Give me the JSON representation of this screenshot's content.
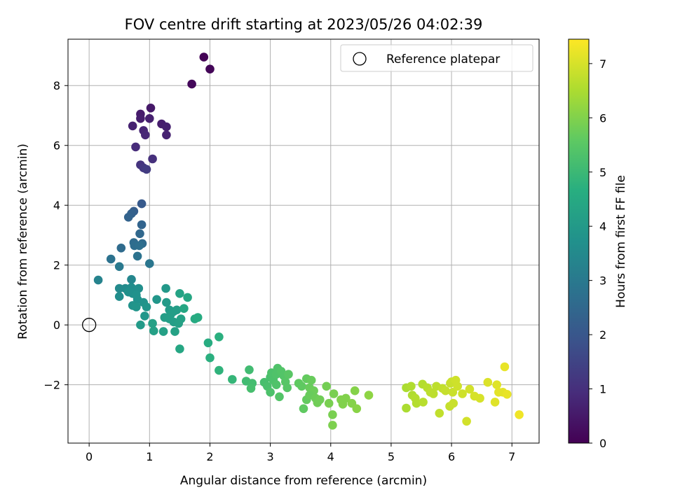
{
  "chart_data": {
    "type": "scatter",
    "title": "FOV centre drift starting at 2023/05/26 04:02:39",
    "xlabel": "Angular distance from reference (arcmin)",
    "ylabel": "Rotation from reference (arcmin)",
    "xlim": [
      -0.35,
      7.45
    ],
    "ylim": [
      -3.95,
      9.55
    ],
    "xticks": [
      0,
      1,
      2,
      3,
      4,
      5,
      6,
      7
    ],
    "yticks": [
      -2,
      0,
      2,
      4,
      6,
      8
    ],
    "grid": true,
    "legend": {
      "placement": "top-right",
      "entries": [
        "Reference platepar"
      ]
    },
    "reference_point": {
      "x": 0,
      "y": 0
    },
    "colorbar": {
      "label": "Hours from first FF file",
      "range": [
        0,
        7.45
      ],
      "ticks": [
        0,
        1,
        2,
        3,
        4,
        5,
        6,
        7
      ],
      "colormap": "viridis"
    },
    "points": [
      {
        "x": 1.9,
        "y": 8.95,
        "c": 0.05
      },
      {
        "x": 2.0,
        "y": 8.55,
        "c": 0.1
      },
      {
        "x": 1.7,
        "y": 8.05,
        "c": 0.15
      },
      {
        "x": 1.02,
        "y": 7.25,
        "c": 0.5
      },
      {
        "x": 0.85,
        "y": 7.05,
        "c": 0.55
      },
      {
        "x": 0.85,
        "y": 6.9,
        "c": 0.6
      },
      {
        "x": 1.0,
        "y": 6.9,
        "c": 0.65
      },
      {
        "x": 0.72,
        "y": 6.65,
        "c": 0.7
      },
      {
        "x": 1.2,
        "y": 6.72,
        "c": 0.6
      },
      {
        "x": 1.28,
        "y": 6.62,
        "c": 0.65
      },
      {
        "x": 0.9,
        "y": 6.5,
        "c": 0.75
      },
      {
        "x": 0.93,
        "y": 6.35,
        "c": 0.8
      },
      {
        "x": 1.28,
        "y": 6.35,
        "c": 0.7
      },
      {
        "x": 0.77,
        "y": 5.95,
        "c": 0.9
      },
      {
        "x": 1.05,
        "y": 5.55,
        "c": 1.0
      },
      {
        "x": 0.85,
        "y": 5.35,
        "c": 1.1
      },
      {
        "x": 0.9,
        "y": 5.25,
        "c": 1.2
      },
      {
        "x": 0.95,
        "y": 5.2,
        "c": 1.3
      },
      {
        "x": 0.87,
        "y": 4.05,
        "c": 2.1
      },
      {
        "x": 0.74,
        "y": 3.8,
        "c": 2.2
      },
      {
        "x": 0.7,
        "y": 3.72,
        "c": 2.3
      },
      {
        "x": 0.65,
        "y": 3.6,
        "c": 2.35
      },
      {
        "x": 0.87,
        "y": 3.35,
        "c": 2.4
      },
      {
        "x": 0.84,
        "y": 3.05,
        "c": 2.5
      },
      {
        "x": 0.74,
        "y": 2.75,
        "c": 2.6
      },
      {
        "x": 0.88,
        "y": 2.72,
        "c": 2.6
      },
      {
        "x": 0.75,
        "y": 2.65,
        "c": 2.65
      },
      {
        "x": 0.83,
        "y": 2.65,
        "c": 2.7
      },
      {
        "x": 0.53,
        "y": 2.57,
        "c": 2.6
      },
      {
        "x": 0.8,
        "y": 2.3,
        "c": 2.8
      },
      {
        "x": 0.36,
        "y": 2.2,
        "c": 2.8
      },
      {
        "x": 1.0,
        "y": 2.05,
        "c": 2.9
      },
      {
        "x": 0.5,
        "y": 1.95,
        "c": 3.0
      },
      {
        "x": 0.15,
        "y": 1.5,
        "c": 3.3
      },
      {
        "x": 0.7,
        "y": 1.52,
        "c": 3.4
      },
      {
        "x": 0.5,
        "y": 1.22,
        "c": 3.5
      },
      {
        "x": 0.6,
        "y": 1.22,
        "c": 3.55
      },
      {
        "x": 0.7,
        "y": 1.25,
        "c": 3.6
      },
      {
        "x": 0.82,
        "y": 1.22,
        "c": 3.65
      },
      {
        "x": 0.65,
        "y": 1.1,
        "c": 3.7
      },
      {
        "x": 0.72,
        "y": 1.05,
        "c": 3.7
      },
      {
        "x": 0.78,
        "y": 1.0,
        "c": 3.75
      },
      {
        "x": 0.5,
        "y": 0.95,
        "c": 3.6
      },
      {
        "x": 0.8,
        "y": 0.85,
        "c": 3.75
      },
      {
        "x": 0.9,
        "y": 0.75,
        "c": 3.8
      },
      {
        "x": 0.72,
        "y": 0.65,
        "c": 3.8
      },
      {
        "x": 0.78,
        "y": 0.6,
        "c": 3.85
      },
      {
        "x": 0.95,
        "y": 0.6,
        "c": 3.85
      },
      {
        "x": 1.12,
        "y": 0.85,
        "c": 3.9
      },
      {
        "x": 1.27,
        "y": 1.22,
        "c": 3.95
      },
      {
        "x": 1.28,
        "y": 0.75,
        "c": 4.0
      },
      {
        "x": 1.33,
        "y": 0.5,
        "c": 4.05
      },
      {
        "x": 1.4,
        "y": 0.45,
        "c": 4.05
      },
      {
        "x": 1.45,
        "y": 0.5,
        "c": 4.1
      },
      {
        "x": 1.35,
        "y": 0.35,
        "c": 4.1
      },
      {
        "x": 1.5,
        "y": 1.05,
        "c": 4.3
      },
      {
        "x": 1.63,
        "y": 0.92,
        "c": 4.4
      },
      {
        "x": 1.57,
        "y": 0.55,
        "c": 4.4
      },
      {
        "x": 1.25,
        "y": 0.25,
        "c": 4.1
      },
      {
        "x": 1.33,
        "y": 0.2,
        "c": 4.15
      },
      {
        "x": 1.4,
        "y": 0.1,
        "c": 4.15
      },
      {
        "x": 1.48,
        "y": 0.05,
        "c": 4.2
      },
      {
        "x": 1.52,
        "y": 0.2,
        "c": 4.25
      },
      {
        "x": 1.05,
        "y": 0.05,
        "c": 4.2
      },
      {
        "x": 0.85,
        "y": 0.0,
        "c": 4.0
      },
      {
        "x": 0.92,
        "y": 0.3,
        "c": 3.9
      },
      {
        "x": 1.07,
        "y": -0.2,
        "c": 4.2
      },
      {
        "x": 1.23,
        "y": -0.22,
        "c": 4.2
      },
      {
        "x": 1.42,
        "y": -0.22,
        "c": 4.25
      },
      {
        "x": 1.75,
        "y": 0.2,
        "c": 4.5
      },
      {
        "x": 1.8,
        "y": 0.25,
        "c": 4.55
      },
      {
        "x": 1.5,
        "y": -0.8,
        "c": 4.4
      },
      {
        "x": 1.97,
        "y": -0.6,
        "c": 4.6
      },
      {
        "x": 2.15,
        "y": -0.4,
        "c": 4.7
      },
      {
        "x": 2.0,
        "y": -1.1,
        "c": 4.7
      },
      {
        "x": 2.15,
        "y": -1.52,
        "c": 4.8
      },
      {
        "x": 2.37,
        "y": -1.82,
        "c": 4.9
      },
      {
        "x": 2.65,
        "y": -1.5,
        "c": 5.1
      },
      {
        "x": 2.6,
        "y": -1.88,
        "c": 5.1
      },
      {
        "x": 2.7,
        "y": -1.95,
        "c": 5.15
      },
      {
        "x": 2.68,
        "y": -2.12,
        "c": 5.2
      },
      {
        "x": 2.9,
        "y": -1.92,
        "c": 5.2
      },
      {
        "x": 2.95,
        "y": -2.05,
        "c": 5.25
      },
      {
        "x": 3.0,
        "y": -1.75,
        "c": 5.25
      },
      {
        "x": 3.02,
        "y": -1.6,
        "c": 5.3
      },
      {
        "x": 3.05,
        "y": -1.85,
        "c": 5.3
      },
      {
        "x": 3.1,
        "y": -1.65,
        "c": 5.35
      },
      {
        "x": 3.12,
        "y": -1.45,
        "c": 5.35
      },
      {
        "x": 3.18,
        "y": -1.55,
        "c": 5.4
      },
      {
        "x": 3.22,
        "y": -1.7,
        "c": 5.4
      },
      {
        "x": 3.25,
        "y": -1.9,
        "c": 5.45
      },
      {
        "x": 3.28,
        "y": -2.1,
        "c": 5.45
      },
      {
        "x": 3.3,
        "y": -1.65,
        "c": 5.5
      },
      {
        "x": 3.0,
        "y": -2.25,
        "c": 5.3
      },
      {
        "x": 3.15,
        "y": -2.4,
        "c": 5.4
      },
      {
        "x": 3.1,
        "y": -2.0,
        "c": 5.35
      },
      {
        "x": 3.47,
        "y": -1.95,
        "c": 5.6
      },
      {
        "x": 3.52,
        "y": -2.05,
        "c": 5.6
      },
      {
        "x": 3.6,
        "y": -1.8,
        "c": 5.65
      },
      {
        "x": 3.65,
        "y": -2.1,
        "c": 5.7
      },
      {
        "x": 3.68,
        "y": -1.85,
        "c": 5.7
      },
      {
        "x": 3.72,
        "y": -2.2,
        "c": 5.75
      },
      {
        "x": 3.6,
        "y": -2.5,
        "c": 5.65
      },
      {
        "x": 3.65,
        "y": -2.35,
        "c": 5.7
      },
      {
        "x": 3.75,
        "y": -2.45,
        "c": 5.75
      },
      {
        "x": 3.55,
        "y": -2.8,
        "c": 5.6
      },
      {
        "x": 3.78,
        "y": -2.6,
        "c": 5.8
      },
      {
        "x": 3.82,
        "y": -2.5,
        "c": 5.8
      },
      {
        "x": 3.93,
        "y": -2.05,
        "c": 5.85
      },
      {
        "x": 3.97,
        "y": -2.62,
        "c": 5.9
      },
      {
        "x": 4.05,
        "y": -2.3,
        "c": 5.9
      },
      {
        "x": 4.03,
        "y": -3.0,
        "c": 5.9
      },
      {
        "x": 4.03,
        "y": -3.35,
        "c": 5.95
      },
      {
        "x": 4.17,
        "y": -2.5,
        "c": 6.0
      },
      {
        "x": 4.2,
        "y": -2.65,
        "c": 6.0
      },
      {
        "x": 4.25,
        "y": -2.45,
        "c": 6.0
      },
      {
        "x": 4.35,
        "y": -2.62,
        "c": 6.05
      },
      {
        "x": 4.4,
        "y": -2.2,
        "c": 6.05
      },
      {
        "x": 4.43,
        "y": -2.8,
        "c": 6.1
      },
      {
        "x": 4.63,
        "y": -2.35,
        "c": 6.15
      },
      {
        "x": 5.25,
        "y": -2.1,
        "c": 6.5
      },
      {
        "x": 5.25,
        "y": -2.78,
        "c": 6.5
      },
      {
        "x": 5.33,
        "y": -2.05,
        "c": 6.55
      },
      {
        "x": 5.35,
        "y": -2.35,
        "c": 6.55
      },
      {
        "x": 5.4,
        "y": -2.45,
        "c": 6.6
      },
      {
        "x": 5.42,
        "y": -2.62,
        "c": 6.6
      },
      {
        "x": 5.52,
        "y": -1.98,
        "c": 6.6
      },
      {
        "x": 5.53,
        "y": -2.58,
        "c": 6.65
      },
      {
        "x": 5.6,
        "y": -2.1,
        "c": 6.65
      },
      {
        "x": 5.65,
        "y": -2.25,
        "c": 6.7
      },
      {
        "x": 5.7,
        "y": -2.3,
        "c": 6.7
      },
      {
        "x": 5.75,
        "y": -2.05,
        "c": 6.7
      },
      {
        "x": 5.8,
        "y": -2.95,
        "c": 6.75
      },
      {
        "x": 5.85,
        "y": -2.12,
        "c": 6.75
      },
      {
        "x": 5.9,
        "y": -2.2,
        "c": 6.8
      },
      {
        "x": 5.98,
        "y": -1.95,
        "c": 6.8
      },
      {
        "x": 5.97,
        "y": -2.72,
        "c": 6.8
      },
      {
        "x": 6.0,
        "y": -1.9,
        "c": 6.85
      },
      {
        "x": 6.02,
        "y": -2.25,
        "c": 6.85
      },
      {
        "x": 6.03,
        "y": -2.62,
        "c": 6.85
      },
      {
        "x": 6.07,
        "y": -1.85,
        "c": 6.9
      },
      {
        "x": 6.1,
        "y": -2.05,
        "c": 6.9
      },
      {
        "x": 6.18,
        "y": -2.3,
        "c": 6.9
      },
      {
        "x": 6.25,
        "y": -3.22,
        "c": 6.95
      },
      {
        "x": 6.3,
        "y": -2.15,
        "c": 6.95
      },
      {
        "x": 6.38,
        "y": -2.38,
        "c": 7.0
      },
      {
        "x": 6.47,
        "y": -2.45,
        "c": 7.0
      },
      {
        "x": 6.6,
        "y": -1.92,
        "c": 7.05
      },
      {
        "x": 6.72,
        "y": -2.58,
        "c": 7.1
      },
      {
        "x": 6.75,
        "y": -2.0,
        "c": 7.1
      },
      {
        "x": 6.78,
        "y": -2.25,
        "c": 7.15
      },
      {
        "x": 6.85,
        "y": -2.25,
        "c": 7.15
      },
      {
        "x": 6.88,
        "y": -1.4,
        "c": 7.2
      },
      {
        "x": 6.92,
        "y": -2.32,
        "c": 7.2
      },
      {
        "x": 7.12,
        "y": -3.0,
        "c": 7.3
      }
    ]
  }
}
